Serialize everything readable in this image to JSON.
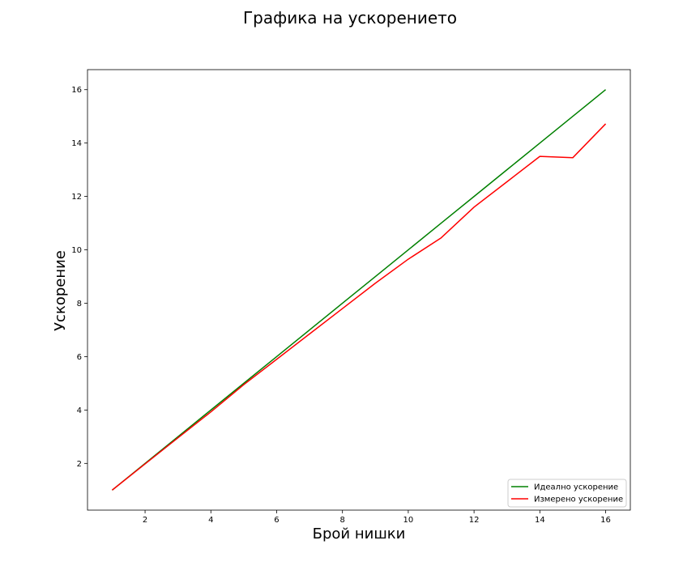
{
  "chart_data": {
    "type": "line",
    "title": "Графика на ускорението",
    "xlabel": "Брой нишки",
    "ylabel": "Ускорение",
    "xlim": [
      0.25,
      16.75
    ],
    "ylim": [
      0.25,
      16.75
    ],
    "x_ticks": [
      2,
      4,
      6,
      8,
      10,
      12,
      14,
      16
    ],
    "y_ticks": [
      2,
      4,
      6,
      8,
      10,
      12,
      14,
      16
    ],
    "grid": false,
    "legend_position": "lower-right",
    "series": [
      {
        "name": "Идеално ускорение",
        "color": "#008000",
        "x": [
          1,
          2,
          3,
          4,
          5,
          6,
          7,
          8,
          9,
          10,
          11,
          12,
          13,
          14,
          15,
          16
        ],
        "y": [
          1,
          2,
          3,
          4,
          5,
          6,
          7,
          8,
          9,
          10,
          11,
          12,
          13,
          14,
          15,
          16
        ]
      },
      {
        "name": "Измерено ускорение",
        "color": "#ff0000",
        "x": [
          1,
          2,
          3,
          4,
          5,
          6,
          7,
          8,
          9,
          10,
          11,
          12,
          13,
          14,
          15,
          16
        ],
        "y": [
          1,
          1.98,
          2.96,
          3.93,
          4.95,
          5.9,
          6.85,
          7.8,
          8.75,
          9.65,
          10.45,
          11.6,
          12.55,
          13.5,
          13.45,
          14.72
        ]
      }
    ]
  }
}
